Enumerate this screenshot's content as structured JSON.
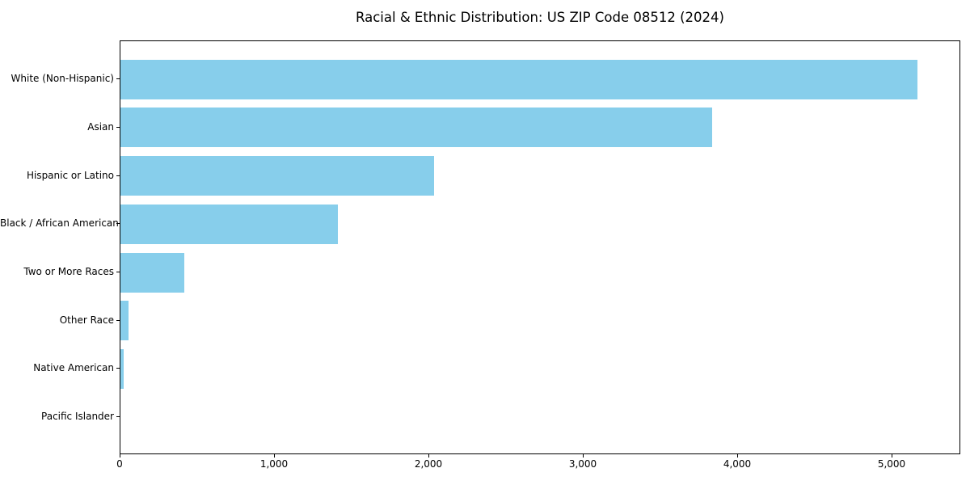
{
  "chart_data": {
    "type": "bar",
    "orientation": "horizontal",
    "title": "Racial & Ethnic Distribution: US ZIP Code 08512 (2024)",
    "categories": [
      "White (Non-Hispanic)",
      "Asian",
      "Hispanic or Latino",
      "Black / African American",
      "Two or More Races",
      "Other Race",
      "Native American",
      "Pacific Islander"
    ],
    "values": [
      5170,
      3840,
      2035,
      1410,
      415,
      50,
      20,
      0
    ],
    "xlabel": "",
    "ylabel": "",
    "xlim": [
      0,
      5445
    ],
    "xticks": [
      0,
      1000,
      2000,
      3000,
      4000,
      5000
    ],
    "xtick_labels": [
      "0",
      "1,000",
      "2,000",
      "3,000",
      "4,000",
      "5,000"
    ],
    "bar_color": "#87CEEB",
    "grid": false,
    "legend_position": "none"
  }
}
